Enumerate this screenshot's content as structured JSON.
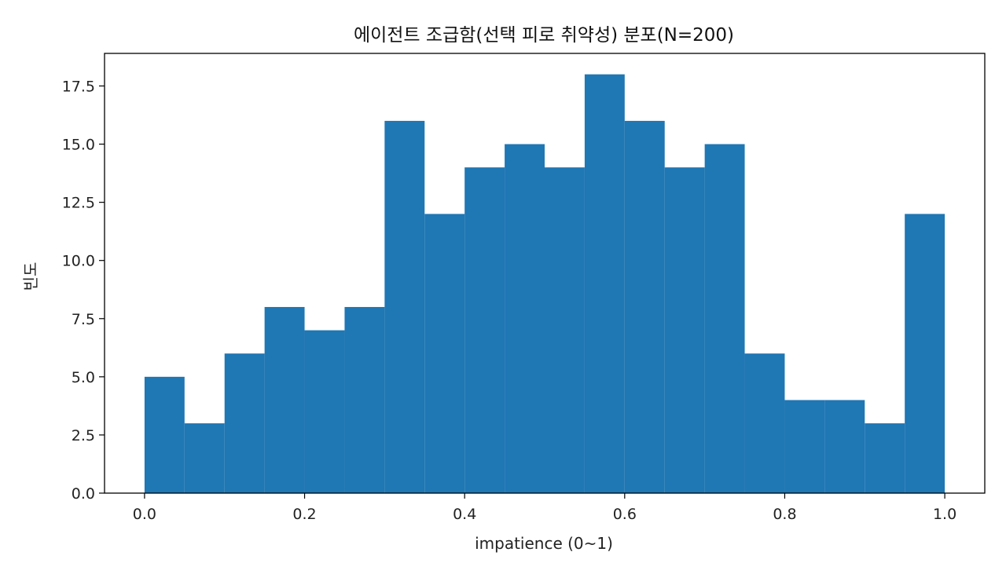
{
  "chart_data": {
    "type": "bar",
    "title": "에이전트 조급함(선택 피로 취약성) 분포(N=200)",
    "xlabel": "impatience (0~1)",
    "ylabel": "빈도",
    "bin_edges": [
      0.0,
      0.05,
      0.1,
      0.15,
      0.2,
      0.25,
      0.3,
      0.35,
      0.4,
      0.45,
      0.5,
      0.55,
      0.6,
      0.65,
      0.7,
      0.75,
      0.8,
      0.85,
      0.9,
      0.95,
      1.0
    ],
    "values": [
      5,
      3,
      6,
      8,
      7,
      8,
      16,
      12,
      14,
      15,
      14,
      18,
      16,
      14,
      15,
      6,
      4,
      4,
      3,
      12
    ],
    "xlim": [
      -0.05,
      1.05
    ],
    "ylim": [
      0,
      18.9
    ],
    "xticks": [
      0.0,
      0.2,
      0.4,
      0.6,
      0.8,
      1.0
    ],
    "xtick_labels": [
      "0.0",
      "0.2",
      "0.4",
      "0.6",
      "0.8",
      "1.0"
    ],
    "yticks": [
      0.0,
      2.5,
      5.0,
      7.5,
      10.0,
      12.5,
      15.0,
      17.5
    ],
    "ytick_labels": [
      "0.0",
      "2.5",
      "5.0",
      "7.5",
      "10.0",
      "12.5",
      "15.0",
      "17.5"
    ],
    "bar_color": "#1f77b4",
    "grid": false,
    "legend": "none"
  }
}
